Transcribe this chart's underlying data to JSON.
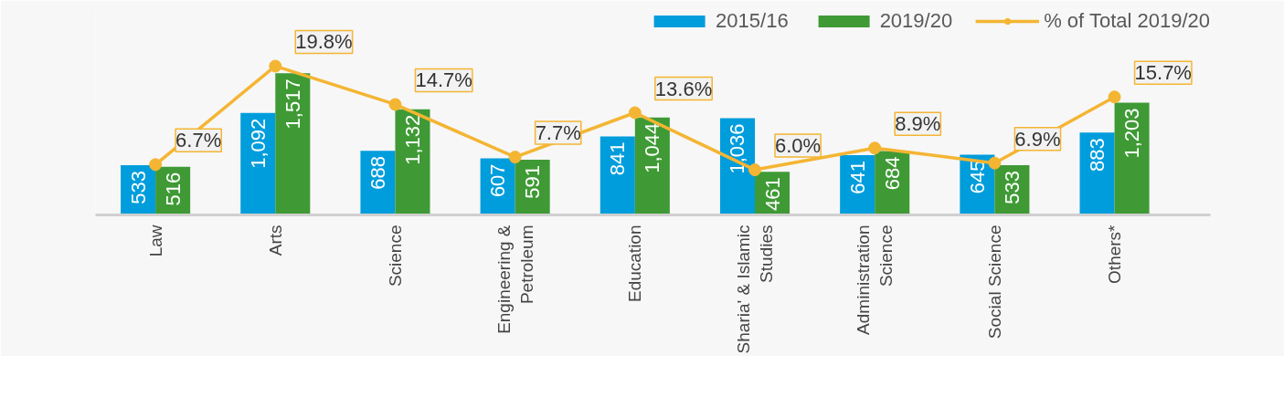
{
  "chart_data": {
    "type": "bar",
    "categories": [
      "Law",
      "Arts",
      "Science",
      "Engineering & Petroleum",
      "Education",
      "Sharia' & Islamic Studies",
      "Administration Science",
      "Social Science",
      "Others*"
    ],
    "series": [
      {
        "name": "2015/16",
        "color": "#009ddc",
        "values": [
          533,
          1092,
          688,
          607,
          841,
          1036,
          641,
          645,
          883
        ],
        "value_labels": [
          "533",
          "1,092",
          "688",
          "607",
          "841",
          "1,036",
          "641",
          "645",
          "883"
        ]
      },
      {
        "name": "2019/20",
        "color": "#3f9a35",
        "values": [
          516,
          1517,
          1132,
          591,
          1044,
          461,
          684,
          533,
          1203
        ],
        "value_labels": [
          "516",
          "1,517",
          "1,132",
          "591",
          "1,044",
          "461",
          "684",
          "533",
          "1,203"
        ]
      },
      {
        "name": "% of Total 2019/20",
        "type": "line",
        "axis": "y2",
        "color": "#f4b533",
        "values": [
          6.7,
          19.8,
          14.7,
          7.7,
          13.6,
          6.0,
          8.9,
          6.9,
          15.7
        ],
        "value_labels": [
          "6.7%",
          "19.8%",
          "14.7%",
          "7.7%",
          "13.6%",
          "6.0%",
          "8.9%",
          "6.9%",
          "15.7%"
        ]
      }
    ],
    "legend": "top right",
    "grid": false,
    "marker": "circle",
    "tick_labels": "x"
  }
}
